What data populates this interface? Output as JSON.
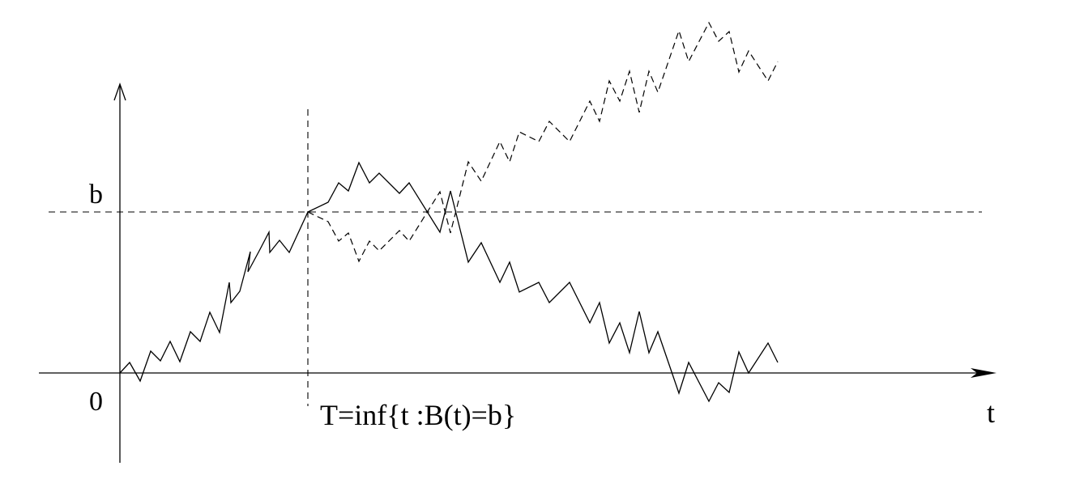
{
  "diagram": {
    "level_label": "b",
    "origin_label": "0",
    "time_axis_label": "t",
    "stopping_time_label": "T=inf{t :B(t)=b}",
    "stroke_color": "#000000",
    "background_color": "#ffffff"
  }
}
